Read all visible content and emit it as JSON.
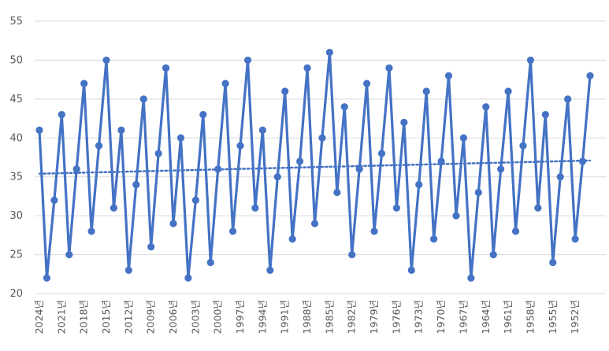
{
  "chart_data": {
    "type": "line",
    "title": "",
    "xlabel": "",
    "ylabel": "",
    "ylim": [
      20,
      55
    ],
    "yticks": [
      20,
      25,
      30,
      35,
      40,
      45,
      50,
      55
    ],
    "grid": "horizontal",
    "legend": "none",
    "x": [
      "2024년",
      "2023년",
      "2022년",
      "2021년",
      "2020년",
      "2019년",
      "2018년",
      "2017년",
      "2016년",
      "2015년",
      "2014년",
      "2013년",
      "2012년",
      "2011년",
      "2010년",
      "2009년",
      "2008년",
      "2007년",
      "2006년",
      "2005년",
      "2004년",
      "2003년",
      "2002년",
      "2001년",
      "2000년",
      "1999년",
      "1998년",
      "1997년",
      "1996년",
      "1995년",
      "1994년",
      "1993년",
      "1992년",
      "1991년",
      "1990년",
      "1989년",
      "1988년",
      "1987년",
      "1986년",
      "1985년",
      "1984년",
      "1983년",
      "1982년",
      "1981년",
      "1980년",
      "1979년",
      "1978년",
      "1977년",
      "1976년",
      "1975년",
      "1974년",
      "1973년",
      "1972년",
      "1971년",
      "1970년",
      "1969년",
      "1968년",
      "1967년",
      "1966년",
      "1965년",
      "1964년",
      "1963년",
      "1962년",
      "1961년",
      "1960년",
      "1959년",
      "1958년",
      "1957년",
      "1956년",
      "1955년",
      "1954년",
      "1953년",
      "1952년",
      "1951년",
      "1950년"
    ],
    "xtick_labels": [
      "2024년",
      "2021년",
      "2018년",
      "2015년",
      "2012년",
      "2009년",
      "2006년",
      "2003년",
      "2000년",
      "1997년",
      "1994년",
      "1991년",
      "1988년",
      "1985년",
      "1982년",
      "1979년",
      "1976년",
      "1973년",
      "1970년",
      "1967년",
      "1964년",
      "1961년",
      "1958년",
      "1955년",
      "1952년"
    ],
    "series": [
      {
        "values": [
          41,
          22,
          32,
          43,
          25,
          36,
          47,
          28,
          39,
          50,
          31,
          41,
          23,
          34,
          45,
          26,
          38,
          49,
          29,
          40,
          22,
          32,
          43,
          24,
          36,
          47,
          28,
          39,
          50,
          31,
          41,
          23,
          35,
          46,
          27,
          37,
          49,
          29,
          40,
          51,
          33,
          44,
          25,
          36,
          47,
          28,
          38,
          49,
          31,
          42,
          23,
          34,
          46,
          27,
          37,
          48,
          30,
          40,
          22,
          33,
          44,
          25,
          36,
          46,
          28,
          39,
          50,
          31,
          43,
          24,
          35,
          45,
          27,
          37,
          48
        ],
        "color": "#4472C4"
      }
    ],
    "trendline": {
      "type": "linear",
      "style": "dotted",
      "start": 35.4,
      "end": 37.1,
      "color": "#4472C4"
    }
  }
}
